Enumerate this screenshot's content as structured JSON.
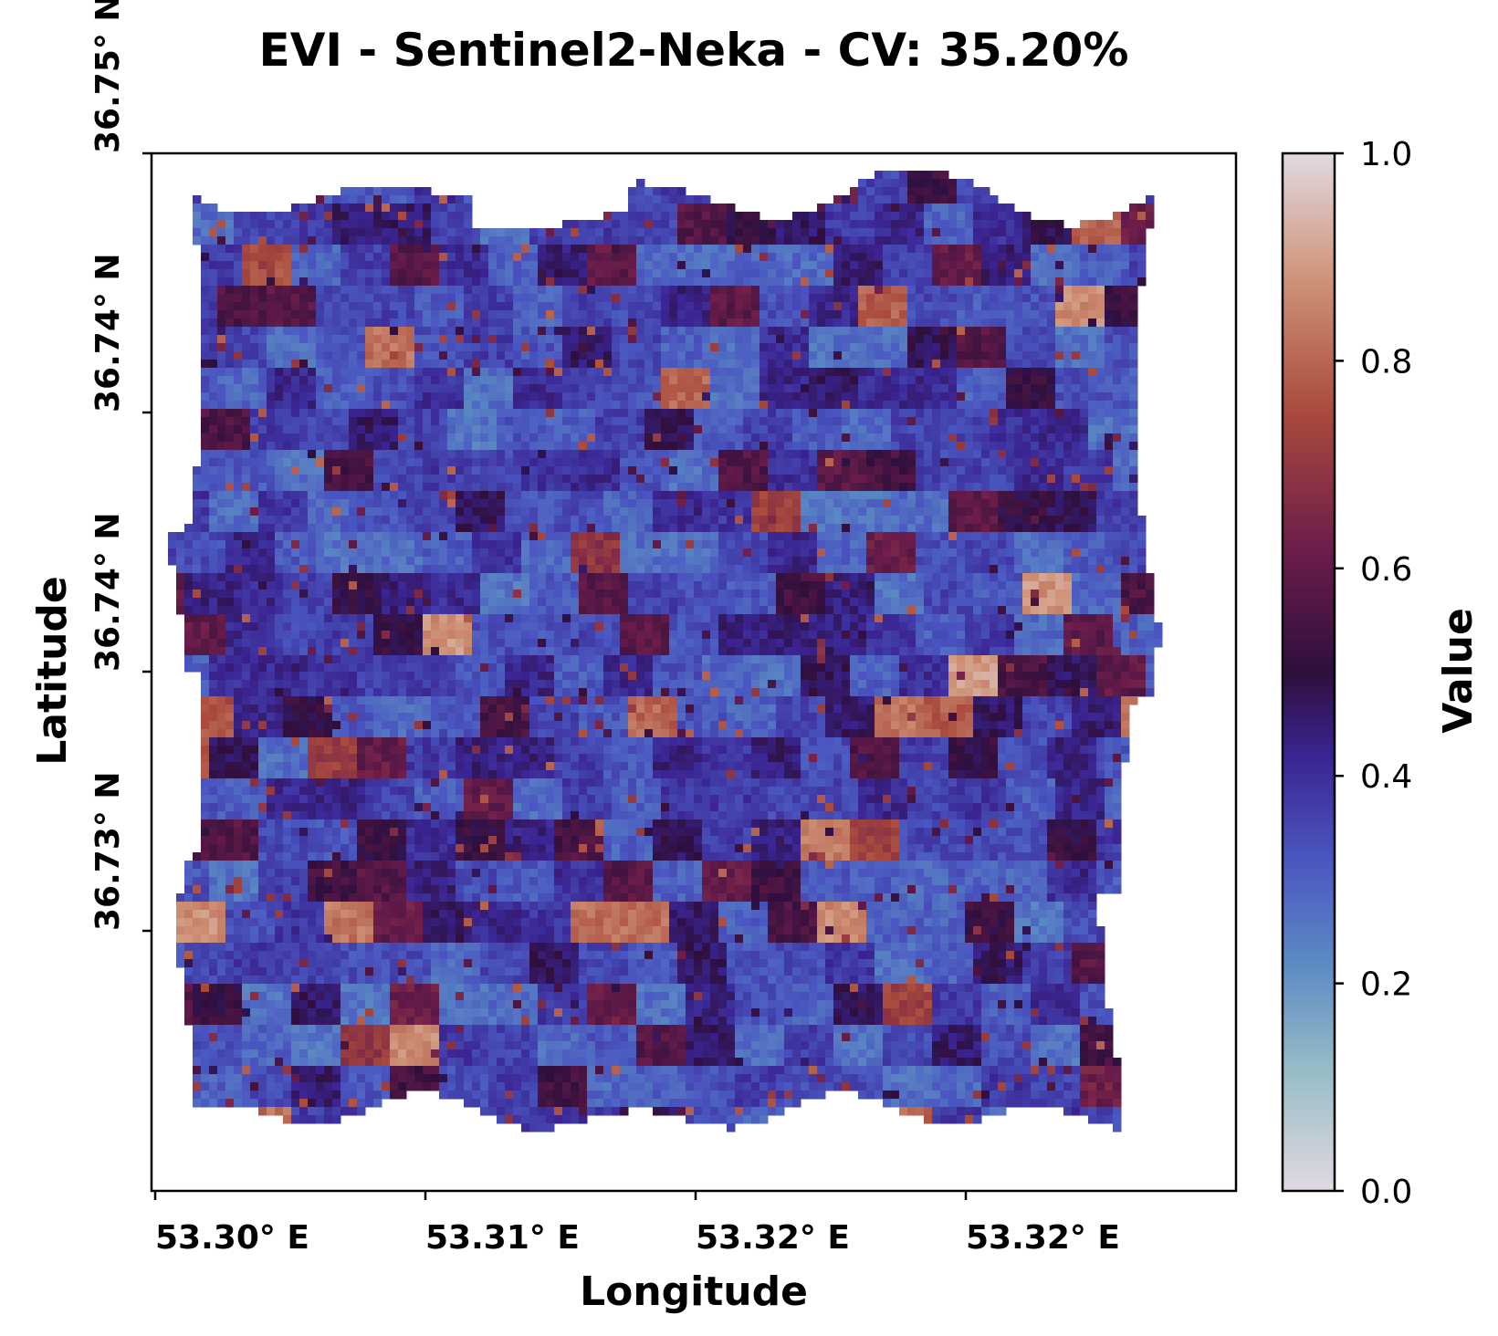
{
  "chart_data": {
    "type": "heatmap",
    "title": "EVI - Sentinel2-Neka - CV: 35.20%",
    "xlabel": "Longitude",
    "ylabel": "Latitude",
    "x_tick_labels": [
      "53.30° E",
      "53.31° E",
      "53.32° E",
      "53.32° E"
    ],
    "y_tick_labels": [
      "36.75° N",
      "36.74° N",
      "36.74° N",
      "36.73° N"
    ],
    "colorbar": {
      "label": "Value",
      "range": [
        0.0,
        1.0
      ],
      "ticks": [
        0.0,
        0.2,
        0.4,
        0.6,
        0.8,
        1.0
      ],
      "tick_labels": [
        "0.0",
        "0.2",
        "0.4",
        "0.6",
        "0.8",
        "1.0"
      ],
      "colormap": "twilight_shifted",
      "colors": [
        "#e2d9e2",
        "#94bbc6",
        "#5b8ac4",
        "#4a56c0",
        "#3a2491",
        "#2f0f3d",
        "#6d1d4a",
        "#a94a3d",
        "#cf9478",
        "#e2d9e2"
      ]
    },
    "value_distribution": {
      "dominant_range": [
        0.25,
        0.45
      ],
      "hotspot_range": [
        0.55,
        0.9
      ]
    },
    "grid": false,
    "legend": "none"
  }
}
